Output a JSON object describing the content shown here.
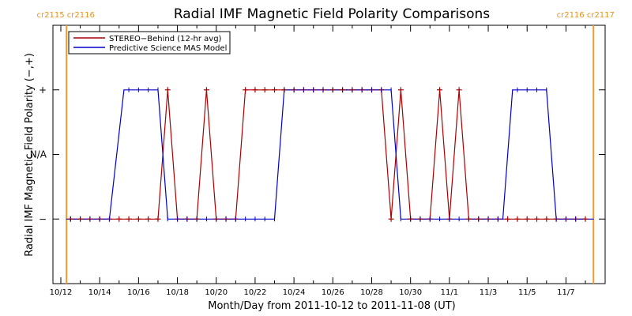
{
  "chart_data": {
    "type": "line",
    "title": "Radial IMF Magnetic Field Polarity Comparisons",
    "xlabel": "Month/Day from 2011-10-12 to 2011-11-08 (UT)",
    "ylabel": "Radial IMF Magnetic Field Polarity (−,+)",
    "x_tick_labels": [
      "10/12",
      "10/14",
      "10/16",
      "10/18",
      "10/20",
      "10/22",
      "10/24",
      "10/26",
      "10/28",
      "10/30",
      "11/1",
      "11/3",
      "11/5",
      "11/7"
    ],
    "y_tick_labels": [
      "+",
      "N/A",
      "−"
    ],
    "y_values_meaning": {
      "+": 1,
      "N/A": 0,
      "−": -1
    },
    "xlim": [
      "2011-10-12",
      "2011-11-08"
    ],
    "ylim": [
      -2,
      2
    ],
    "carrington_markers": [
      {
        "label_left": "cr2115",
        "label_right": "cr2116",
        "date": "2011-10-12T07:00"
      },
      {
        "label_left": "cr2116",
        "label_right": "cr2117",
        "date": "2011-11-08T10:00"
      }
    ],
    "legend_position": "top-left",
    "series": [
      {
        "name": "STEREO−Behind (12-hr avg)",
        "color": "#aa0000",
        "marker": "+",
        "x": [
          "2011-10-12T12:00",
          "2011-10-13T00:00",
          "2011-10-13T12:00",
          "2011-10-14T00:00",
          "2011-10-14T12:00",
          "2011-10-15T00:00",
          "2011-10-15T12:00",
          "2011-10-16T00:00",
          "2011-10-16T12:00",
          "2011-10-17T00:00",
          "2011-10-17T12:00",
          "2011-10-18T00:00",
          "2011-10-18T12:00",
          "2011-10-19T00:00",
          "2011-10-19T12:00",
          "2011-10-20T00:00",
          "2011-10-20T12:00",
          "2011-10-21T00:00",
          "2011-10-21T12:00",
          "2011-10-22T00:00",
          "2011-10-22T12:00",
          "2011-10-23T00:00",
          "2011-10-23T12:00",
          "2011-10-24T00:00",
          "2011-10-24T12:00",
          "2011-10-25T00:00",
          "2011-10-25T12:00",
          "2011-10-26T00:00",
          "2011-10-26T12:00",
          "2011-10-27T00:00",
          "2011-10-27T12:00",
          "2011-10-28T00:00",
          "2011-10-28T12:00",
          "2011-10-29T00:00",
          "2011-10-29T12:00",
          "2011-10-30T00:00",
          "2011-10-30T12:00",
          "2011-10-31T00:00",
          "2011-10-31T12:00",
          "2011-11-01T00:00",
          "2011-11-01T12:00",
          "2011-11-02T00:00",
          "2011-11-02T12:00",
          "2011-11-03T00:00",
          "2011-11-03T12:00",
          "2011-11-04T00:00",
          "2011-11-04T12:00",
          "2011-11-05T00:00",
          "2011-11-05T12:00",
          "2011-11-06T00:00",
          "2011-11-06T12:00",
          "2011-11-07T00:00",
          "2011-11-07T12:00",
          "2011-11-08T00:00"
        ],
        "y": [
          -1,
          -1,
          -1,
          -1,
          -1,
          -1,
          -1,
          -1,
          -1,
          -1,
          1,
          -1,
          -1,
          -1,
          1,
          -1,
          -1,
          -1,
          1,
          1,
          1,
          1,
          1,
          1,
          1,
          1,
          1,
          1,
          1,
          1,
          1,
          1,
          1,
          -1,
          1,
          -1,
          -1,
          -1,
          1,
          -1,
          1,
          -1,
          -1,
          -1,
          -1,
          -1,
          -1,
          -1,
          -1,
          -1,
          -1,
          -1,
          -1,
          -1
        ]
      },
      {
        "name": "Predictive Science MAS Model",
        "color": "#0000cc",
        "x": [
          "2011-10-12T07:00",
          "2011-10-14T12:00",
          "2011-10-15T06:00",
          "2011-10-17T00:00",
          "2011-10-17T12:00",
          "2011-10-23T00:00",
          "2011-10-23T12:00",
          "2011-10-29T00:00",
          "2011-10-29T12:00",
          "2011-11-03T18:00",
          "2011-11-04T06:00",
          "2011-11-06T00:00",
          "2011-11-06T12:00",
          "2011-11-08T10:00"
        ],
        "y": [
          -1,
          -1,
          1,
          1,
          -1,
          -1,
          1,
          1,
          -1,
          -1,
          1,
          1,
          -1,
          -1
        ]
      }
    ]
  }
}
